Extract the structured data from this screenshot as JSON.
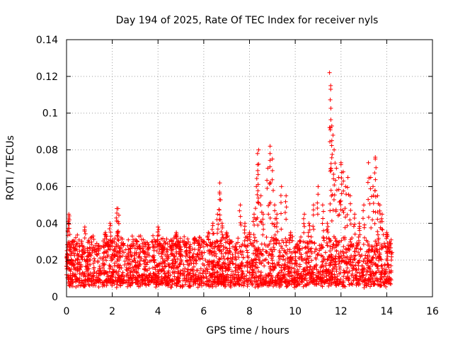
{
  "chart_data": {
    "type": "scatter",
    "title": "Day 194 of 2025, Rate Of TEC Index for receiver nyls",
    "xlabel": "GPS time / hours",
    "ylabel": "ROTI / TECUs",
    "xlim": [
      0,
      16
    ],
    "ylim": [
      0,
      0.14
    ],
    "x_ticks": [
      "0",
      "2",
      "4",
      "6",
      "8",
      "10",
      "12",
      "14",
      "16"
    ],
    "y_ticks": [
      "0",
      "0.02",
      "0.04",
      "0.06",
      "0.08",
      "0.1",
      "0.12",
      "0.14"
    ],
    "grid": true,
    "marker": "+",
    "color": "#ff0000",
    "series": [
      {
        "name": "ROTI",
        "data_extent_hours": [
          0,
          14.2
        ],
        "typical_band": [
          0.005,
          0.03
        ],
        "x": [
          0.0,
          0.05,
          0.1,
          0.15,
          0.2,
          0.3,
          0.5,
          0.7,
          0.8,
          0.9,
          1.0,
          1.2,
          1.4,
          1.6,
          1.7,
          1.8,
          1.9,
          2.0,
          2.1,
          2.2,
          2.25,
          2.3,
          2.5,
          2.7,
          2.8,
          3.0,
          3.2,
          3.4,
          3.6,
          3.8,
          3.9,
          4.0,
          4.1,
          4.2,
          4.4,
          4.6,
          4.8,
          4.9,
          5.0,
          5.2,
          5.4,
          5.6,
          5.8,
          6.0,
          6.2,
          6.4,
          6.6,
          6.7,
          6.8,
          7.0,
          7.2,
          7.4,
          7.6,
          7.8,
          8.0,
          8.2,
          8.3,
          8.35,
          8.4,
          8.5,
          8.6,
          8.8,
          8.9,
          9.0,
          9.1,
          9.2,
          9.4,
          9.6,
          9.8,
          10.0,
          10.2,
          10.4,
          10.6,
          10.8,
          11.0,
          11.2,
          11.4,
          11.5,
          11.55,
          11.6,
          11.65,
          11.7,
          11.8,
          11.9,
          12.0,
          12.1,
          12.2,
          12.3,
          12.4,
          12.6,
          12.8,
          13.0,
          13.2,
          13.3,
          13.4,
          13.5,
          13.6,
          13.7,
          13.8,
          14.0,
          14.1,
          14.2,
          0.07,
          0.12,
          2.25,
          6.7,
          8.35,
          8.9,
          11.55,
          11.6,
          12.0,
          13.5
        ],
        "y": [
          0.012,
          0.02,
          0.045,
          0.025,
          0.015,
          0.03,
          0.018,
          0.022,
          0.038,
          0.014,
          0.02,
          0.016,
          0.025,
          0.02,
          0.035,
          0.028,
          0.04,
          0.03,
          0.022,
          0.048,
          0.035,
          0.02,
          0.028,
          0.018,
          0.024,
          0.015,
          0.022,
          0.018,
          0.026,
          0.02,
          0.03,
          0.038,
          0.028,
          0.024,
          0.02,
          0.026,
          0.035,
          0.03,
          0.02,
          0.028,
          0.024,
          0.032,
          0.025,
          0.03,
          0.035,
          0.04,
          0.045,
          0.062,
          0.04,
          0.035,
          0.03,
          0.025,
          0.05,
          0.04,
          0.035,
          0.045,
          0.06,
          0.078,
          0.08,
          0.055,
          0.045,
          0.07,
          0.082,
          0.075,
          0.05,
          0.045,
          0.06,
          0.055,
          0.035,
          0.02,
          0.03,
          0.045,
          0.04,
          0.05,
          0.06,
          0.05,
          0.04,
          0.122,
          0.115,
          0.093,
          0.088,
          0.08,
          0.07,
          0.065,
          0.072,
          0.068,
          0.06,
          0.065,
          0.055,
          0.045,
          0.04,
          0.05,
          0.073,
          0.065,
          0.06,
          0.075,
          0.055,
          0.05,
          0.045,
          0.035,
          0.025,
          0.02,
          0.041,
          0.044,
          0.048,
          0.056,
          0.072,
          0.078,
          0.113,
          0.085,
          0.073,
          0.076
        ]
      }
    ]
  }
}
